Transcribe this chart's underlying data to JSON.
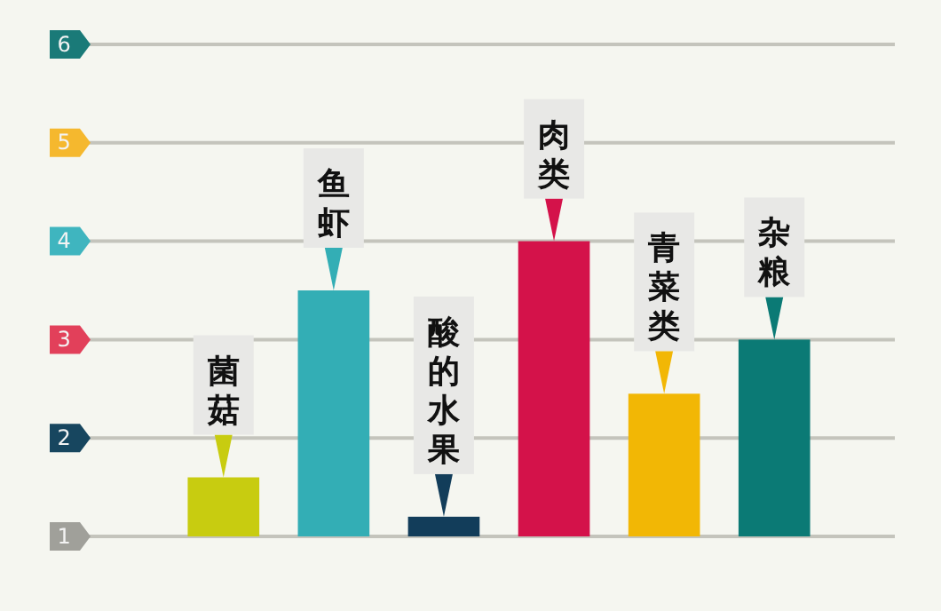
{
  "chart_data": {
    "type": "bar",
    "categories": [
      "菌菇",
      "鱼虾",
      "酸的水果",
      "肉类",
      "青菜类",
      "杂粮"
    ],
    "values": [
      1.6,
      3.5,
      1.2,
      4.0,
      2.45,
      3.0
    ],
    "colors": [
      "#c8cc10",
      "#33aeb5",
      "#123d5a",
      "#d4124a",
      "#f2b705",
      "#0b7a75"
    ],
    "ylim": [
      1,
      6
    ],
    "yticks": [
      1,
      2,
      3,
      4,
      5,
      6
    ],
    "grid": "y"
  }
}
